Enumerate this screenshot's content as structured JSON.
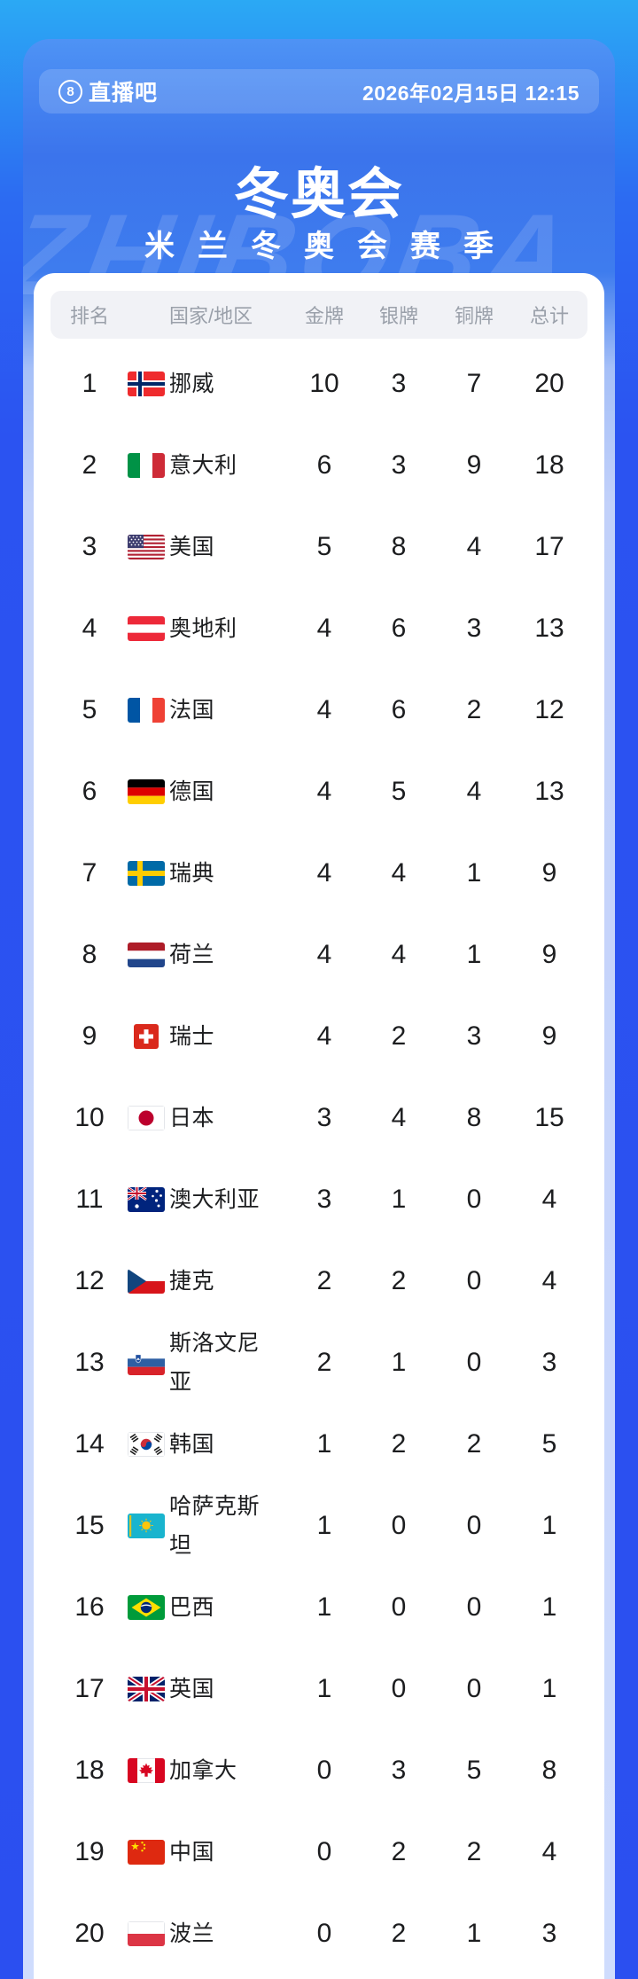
{
  "topbar": {
    "logo_badge": "8",
    "logo_text": "直播吧",
    "datetime": "2026年02月15日 12:15"
  },
  "hero": {
    "title": "冬奥会",
    "subtitle": "米兰冬奥会赛季",
    "watermark": "ZHIBOBA"
  },
  "colors": {
    "outer_background_top": "#2BA9F4",
    "outer_background_bottom": "#2B4FF0",
    "poster_blue": "#3E7CEE",
    "poster_bottom": "#CFDCFD",
    "card_background": "#FFFFFF",
    "header_bar": "#F1F2F6",
    "header_text": "#9AA0AA",
    "row_text": "#1C1D1F"
  },
  "table": {
    "columns": [
      "排名",
      "国家/地区",
      "金牌",
      "银牌",
      "铜牌",
      "总计"
    ],
    "rows": [
      {
        "rank": "1",
        "country": "挪威",
        "flag": "norway",
        "gold": "10",
        "silver": "3",
        "bronze": "7",
        "total": "20"
      },
      {
        "rank": "2",
        "country": "意大利",
        "flag": "italy",
        "gold": "6",
        "silver": "3",
        "bronze": "9",
        "total": "18"
      },
      {
        "rank": "3",
        "country": "美国",
        "flag": "usa",
        "gold": "5",
        "silver": "8",
        "bronze": "4",
        "total": "17"
      },
      {
        "rank": "4",
        "country": "奥地利",
        "flag": "austria",
        "gold": "4",
        "silver": "6",
        "bronze": "3",
        "total": "13"
      },
      {
        "rank": "5",
        "country": "法国",
        "flag": "france",
        "gold": "4",
        "silver": "6",
        "bronze": "2",
        "total": "12"
      },
      {
        "rank": "6",
        "country": "德国",
        "flag": "germany",
        "gold": "4",
        "silver": "5",
        "bronze": "4",
        "total": "13"
      },
      {
        "rank": "7",
        "country": "瑞典",
        "flag": "sweden",
        "gold": "4",
        "silver": "4",
        "bronze": "1",
        "total": "9"
      },
      {
        "rank": "8",
        "country": "荷兰",
        "flag": "netherlands",
        "gold": "4",
        "silver": "4",
        "bronze": "1",
        "total": "9"
      },
      {
        "rank": "9",
        "country": "瑞士",
        "flag": "switzerland",
        "gold": "4",
        "silver": "2",
        "bronze": "3",
        "total": "9"
      },
      {
        "rank": "10",
        "country": "日本",
        "flag": "japan",
        "gold": "3",
        "silver": "4",
        "bronze": "8",
        "total": "15"
      },
      {
        "rank": "11",
        "country": "澳大利亚",
        "flag": "australia",
        "gold": "3",
        "silver": "1",
        "bronze": "0",
        "total": "4"
      },
      {
        "rank": "12",
        "country": "捷克",
        "flag": "czech",
        "gold": "2",
        "silver": "2",
        "bronze": "0",
        "total": "4"
      },
      {
        "rank": "13",
        "country": "斯洛文尼亚",
        "flag": "slovenia",
        "gold": "2",
        "silver": "1",
        "bronze": "0",
        "total": "3"
      },
      {
        "rank": "14",
        "country": "韩国",
        "flag": "korea",
        "gold": "1",
        "silver": "2",
        "bronze": "2",
        "total": "5"
      },
      {
        "rank": "15",
        "country": "哈萨克斯坦",
        "flag": "kazakhstan",
        "gold": "1",
        "silver": "0",
        "bronze": "0",
        "total": "1"
      },
      {
        "rank": "16",
        "country": "巴西",
        "flag": "brazil",
        "gold": "1",
        "silver": "0",
        "bronze": "0",
        "total": "1"
      },
      {
        "rank": "17",
        "country": "英国",
        "flag": "uk",
        "gold": "1",
        "silver": "0",
        "bronze": "0",
        "total": "1"
      },
      {
        "rank": "18",
        "country": "加拿大",
        "flag": "canada",
        "gold": "0",
        "silver": "3",
        "bronze": "5",
        "total": "8"
      },
      {
        "rank": "19",
        "country": "中国",
        "flag": "china",
        "gold": "0",
        "silver": "2",
        "bronze": "2",
        "total": "4"
      },
      {
        "rank": "20",
        "country": "波兰",
        "flag": "poland",
        "gold": "0",
        "silver": "2",
        "bronze": "1",
        "total": "3"
      }
    ]
  }
}
